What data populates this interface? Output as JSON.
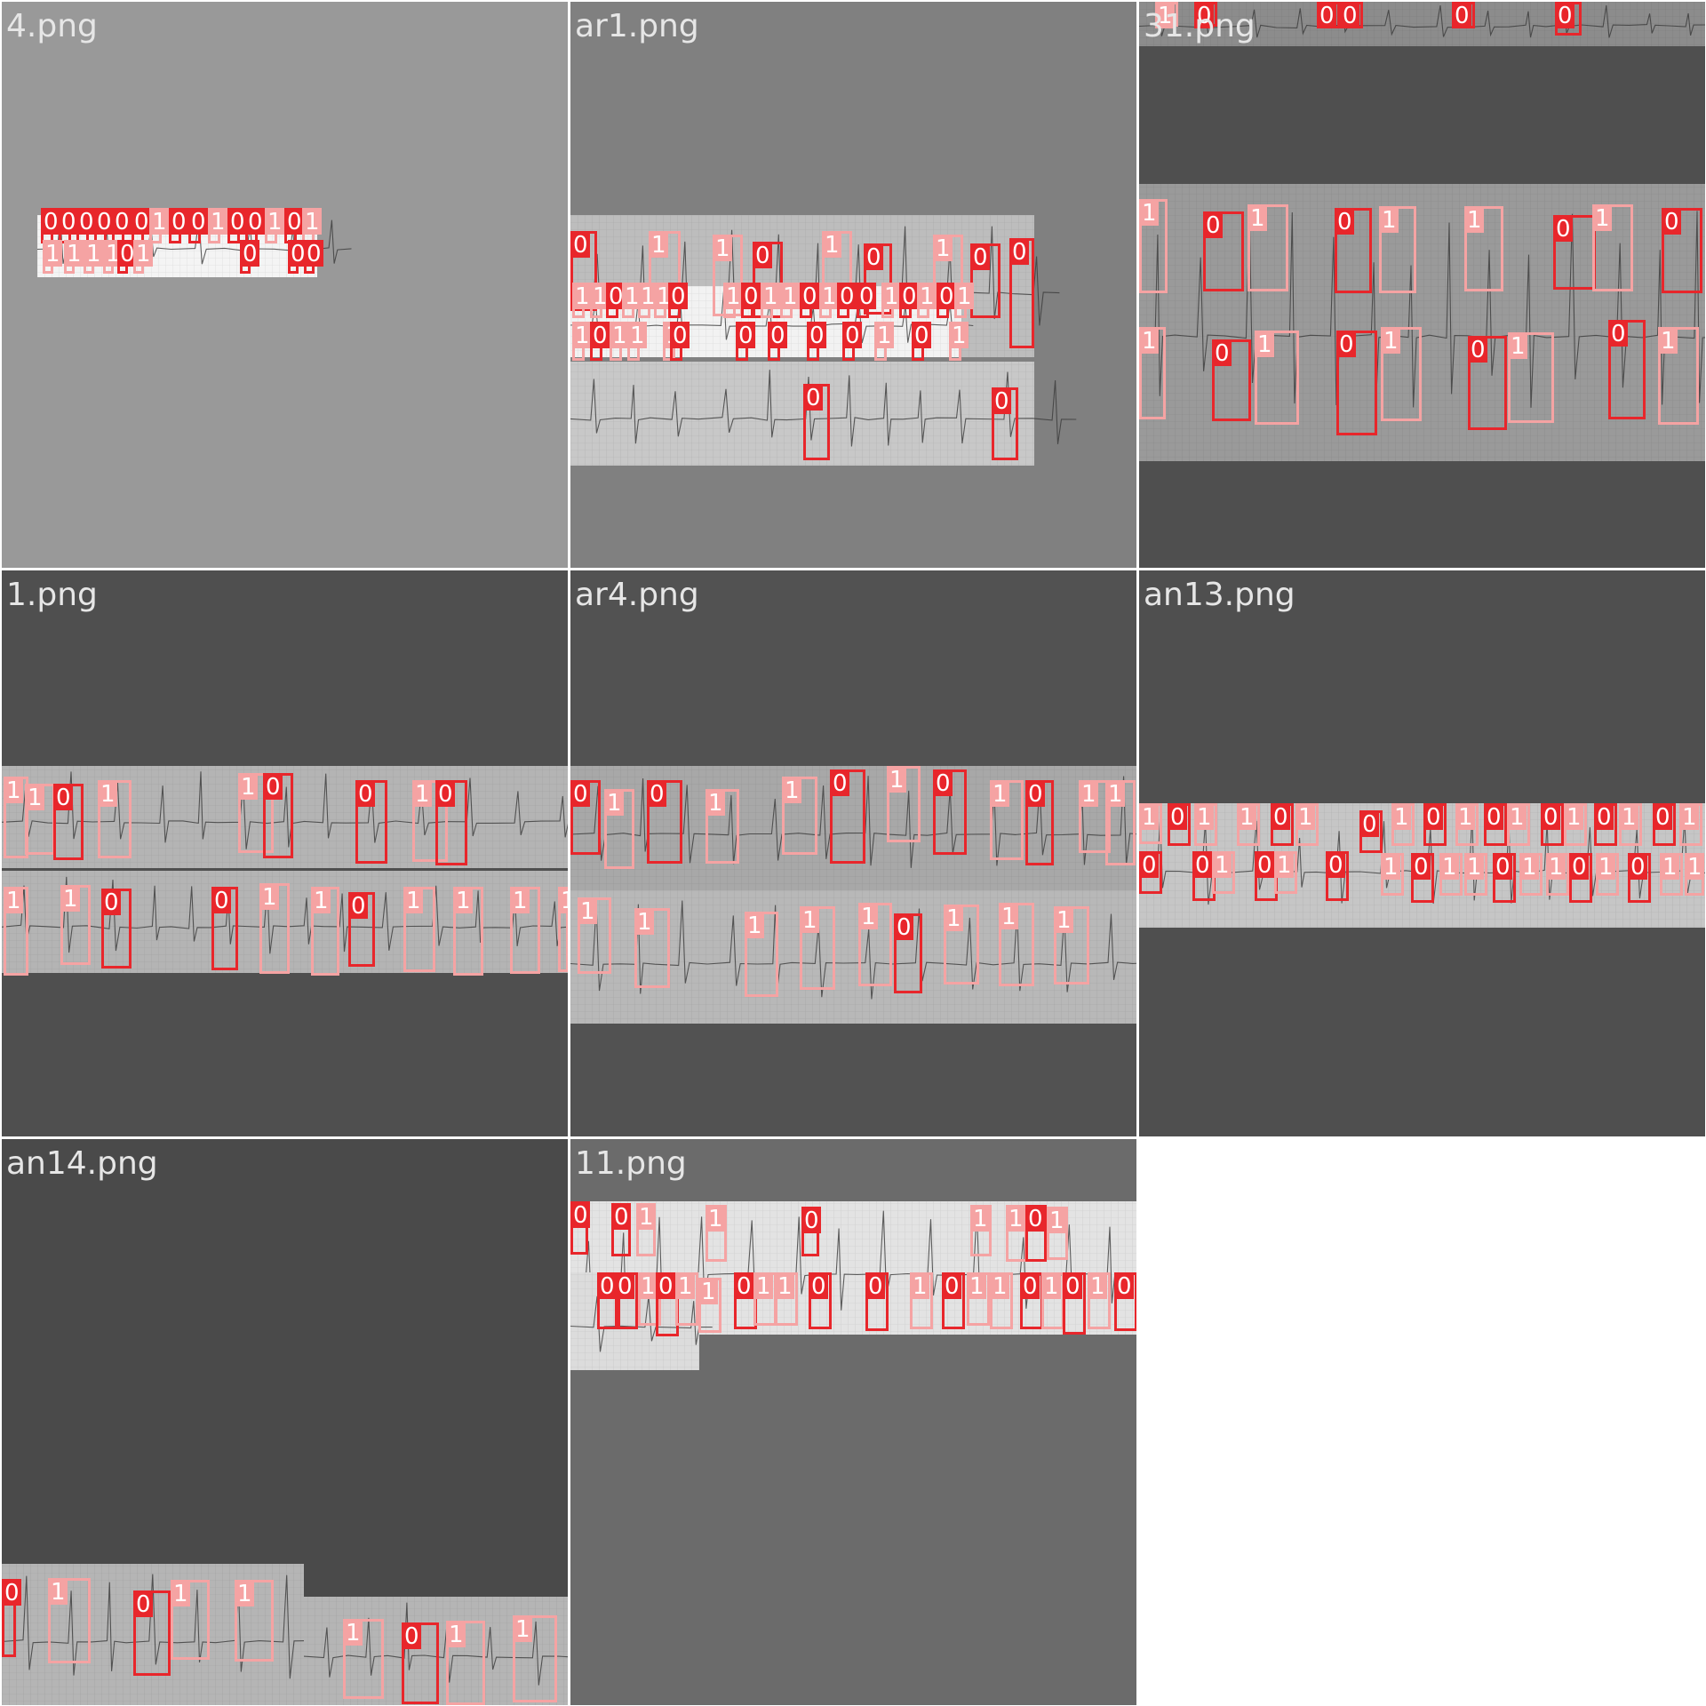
{
  "colors": {
    "page_bg": "#ffffff",
    "class_0": "#e8262b",
    "class_1": "#f5a3a3",
    "label_text": "#ffffff",
    "title_text": "#e6e6e6",
    "strip_light": "#c9c9c9",
    "strip_gray": "#b0b0b0",
    "trace": "#3a3a3a"
  },
  "cells": [
    {
      "title": "4.png",
      "bg": "#999999"
    },
    {
      "title": "ar1.png",
      "bg": "#808080"
    },
    {
      "title": "31.png",
      "bg": "#4f4f4f"
    },
    {
      "title": "1.png",
      "bg": "#4f4f4f"
    },
    {
      "title": "ar4.png",
      "bg": "#525252"
    },
    {
      "title": "an13.png",
      "bg": "#4f4f4f"
    },
    {
      "title": "an14.png",
      "bg": "#4a4a4a"
    },
    {
      "title": "11.png",
      "bg": "#6b6b6b"
    }
  ],
  "class_labels": [
    "0",
    "1"
  ]
}
